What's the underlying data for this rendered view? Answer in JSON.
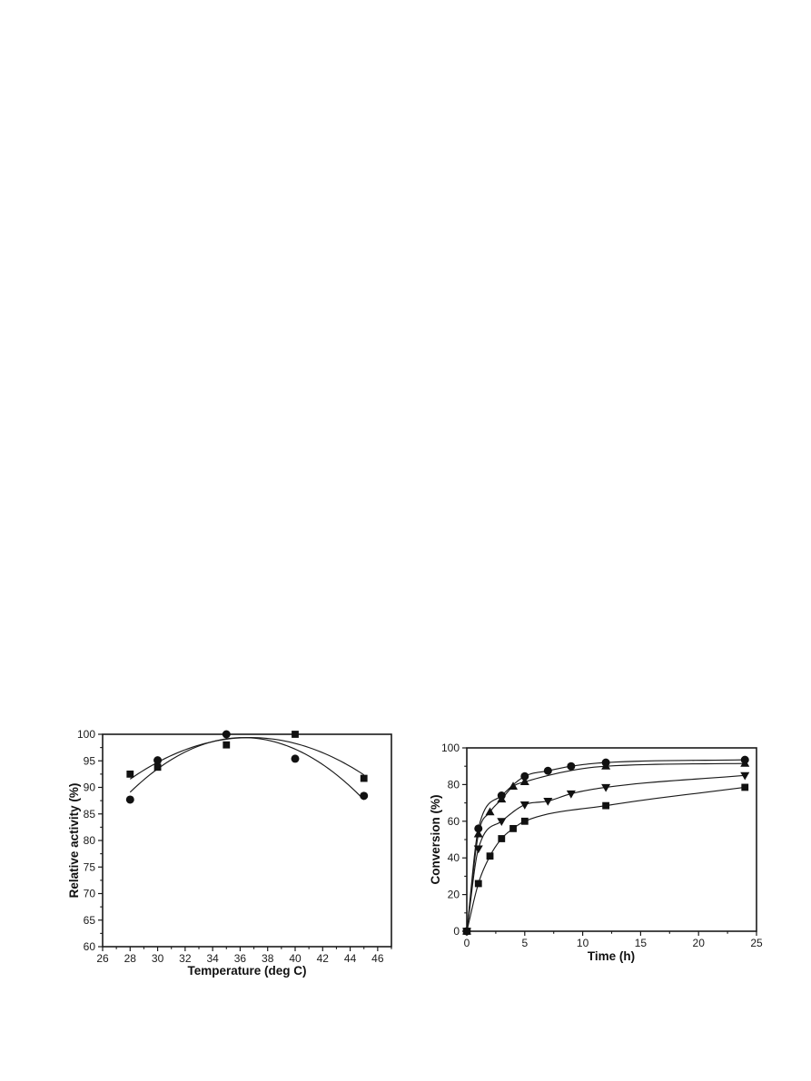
{
  "page": {
    "background": "#ffffff",
    "description": "two-panel black and white scientific figure on blank page"
  },
  "style": {
    "ink": "#1a1a1a",
    "marker_fill": "#111111",
    "frame_color": "#1a1a1a"
  },
  "chart_data": [
    {
      "type": "scatter",
      "panel": "left",
      "title": "",
      "xlabel": "Temperature (deg C)",
      "ylabel": "Relative activity (%)",
      "xlim": [
        26,
        47
      ],
      "ylim": [
        60,
        100
      ],
      "x_major_ticks": [
        26,
        28,
        30,
        32,
        34,
        36,
        38,
        40,
        42,
        44,
        46
      ],
      "x_minor_step": 1,
      "y_major_ticks": [
        60,
        65,
        70,
        75,
        80,
        85,
        90,
        95,
        100
      ],
      "y_minor_step": 2.5,
      "grid": false,
      "legend": "none",
      "curve_fit": "quadratic",
      "series": [
        {
          "name": "filled-circle-series",
          "marker": "circle",
          "x": [
            28,
            30,
            35,
            40,
            45
          ],
          "y": [
            87.7,
            95.1,
            100,
            95.4,
            88.4
          ]
        },
        {
          "name": "filled-square-series",
          "marker": "square",
          "x": [
            28,
            30,
            35,
            40,
            45
          ],
          "y": [
            92.5,
            93.8,
            98,
            100,
            91.7
          ]
        }
      ]
    },
    {
      "type": "scatter",
      "panel": "right",
      "title": "",
      "xlabel": "Time (h)",
      "ylabel": "Conversion (%)",
      "xlim": [
        0,
        25
      ],
      "ylim": [
        0,
        100
      ],
      "x_major_ticks": [
        0,
        5,
        10,
        15,
        20,
        25
      ],
      "x_minor_step": 2.5,
      "y_major_ticks": [
        0,
        20,
        40,
        60,
        80,
        100
      ],
      "y_minor_step": 10,
      "grid": false,
      "legend": "none",
      "curve_fit": "spline",
      "series": [
        {
          "name": "filled-circle-series",
          "marker": "circle",
          "x": [
            0,
            1,
            3,
            5,
            7,
            9,
            12,
            24
          ],
          "y": [
            0,
            56,
            74,
            84.5,
            87.5,
            90,
            92,
            93.5
          ]
        },
        {
          "name": "filled-triangle-up-series",
          "marker": "triangle-up",
          "x": [
            0,
            1,
            2,
            3,
            4,
            5,
            12,
            24
          ],
          "y": [
            0,
            53,
            65,
            72,
            79,
            81.5,
            90,
            91.5
          ]
        },
        {
          "name": "filled-triangle-down-series",
          "marker": "triangle-down",
          "x": [
            0,
            1,
            3,
            5,
            7,
            9,
            12,
            24
          ],
          "y": [
            0,
            45,
            60,
            69,
            71,
            75,
            78.5,
            85
          ]
        },
        {
          "name": "filled-square-series",
          "marker": "square",
          "x": [
            0,
            1,
            2,
            3,
            4,
            5,
            12,
            24
          ],
          "y": [
            0,
            26,
            41,
            50.5,
            56,
            60,
            68.5,
            78.5
          ]
        }
      ]
    }
  ]
}
